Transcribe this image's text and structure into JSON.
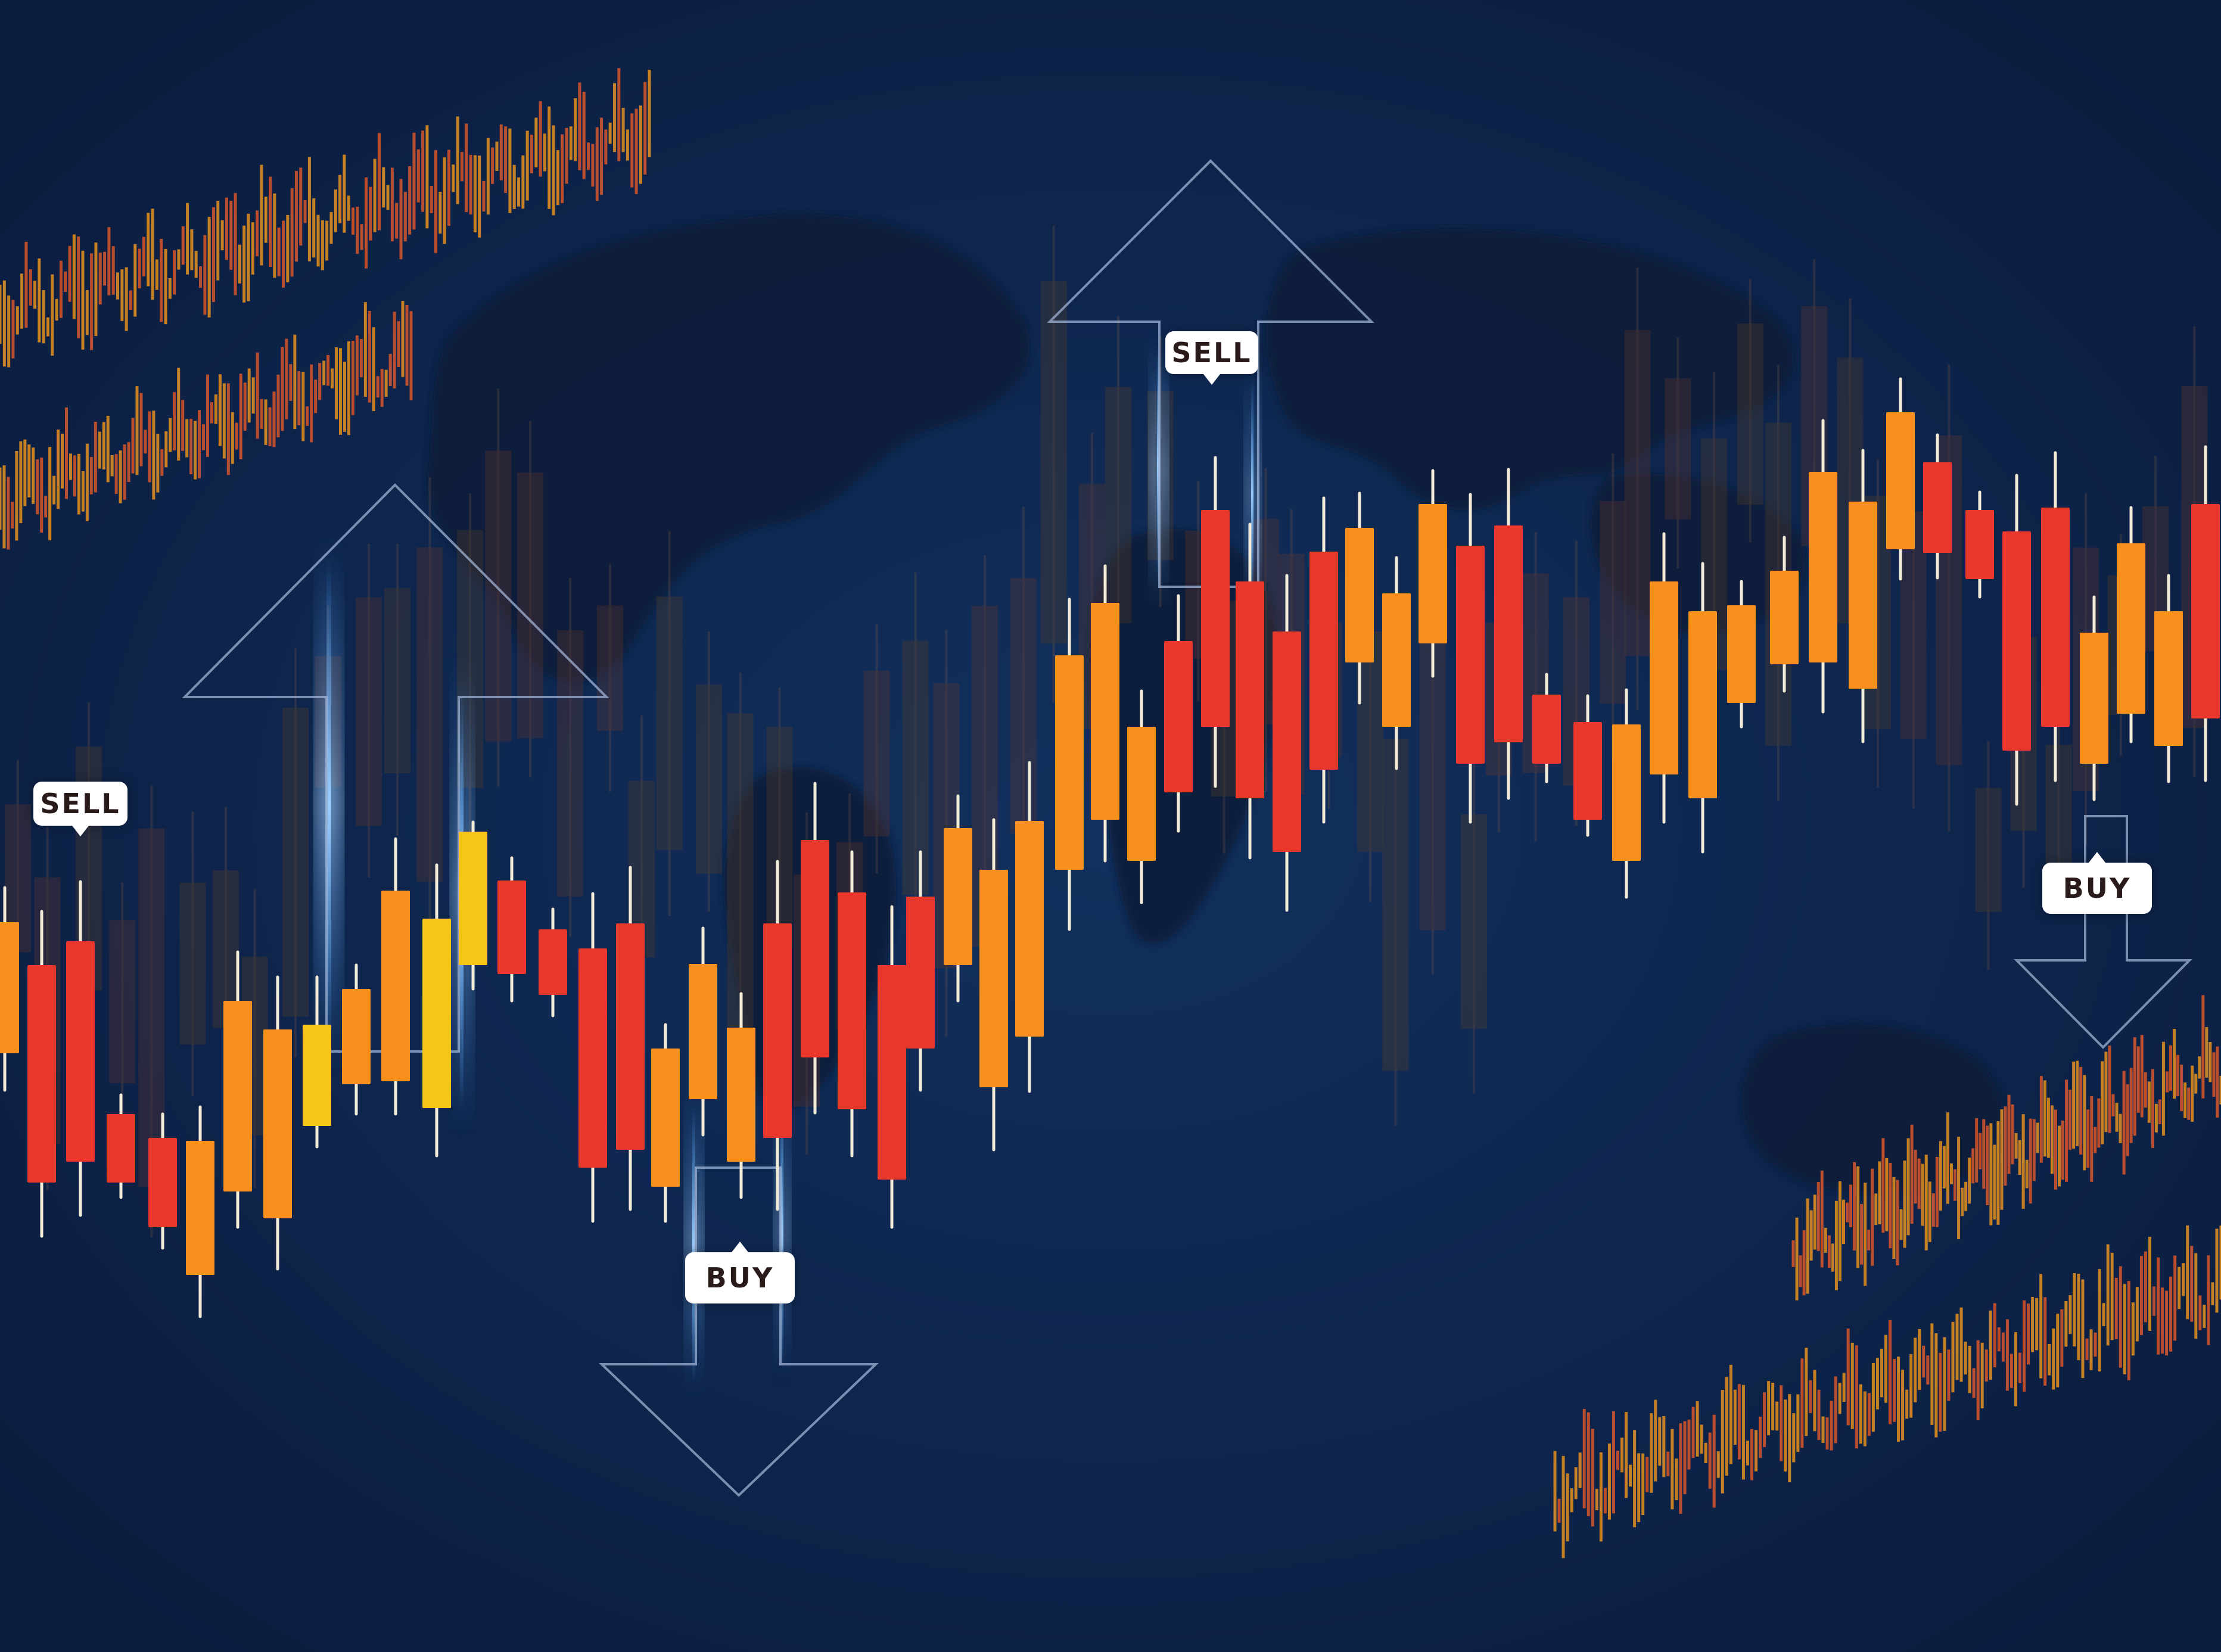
{
  "labels": {
    "sell_left": "SELL",
    "sell_center": "SELL",
    "buy_center": "BUY",
    "buy_right": "BUY"
  },
  "colors": {
    "background": "#0d2247",
    "map": "#0a1a38",
    "bearish": "#e8372b",
    "bullish": "#f7901e",
    "highlight": "#f5c518",
    "wick": "#f3ecd8",
    "glow": "#4aa3ff",
    "arrow_outline": "#9fb3d6"
  },
  "icons": [
    "up-arrow-outline-icon",
    "down-arrow-outline-icon",
    "world-map-silhouette"
  ]
}
